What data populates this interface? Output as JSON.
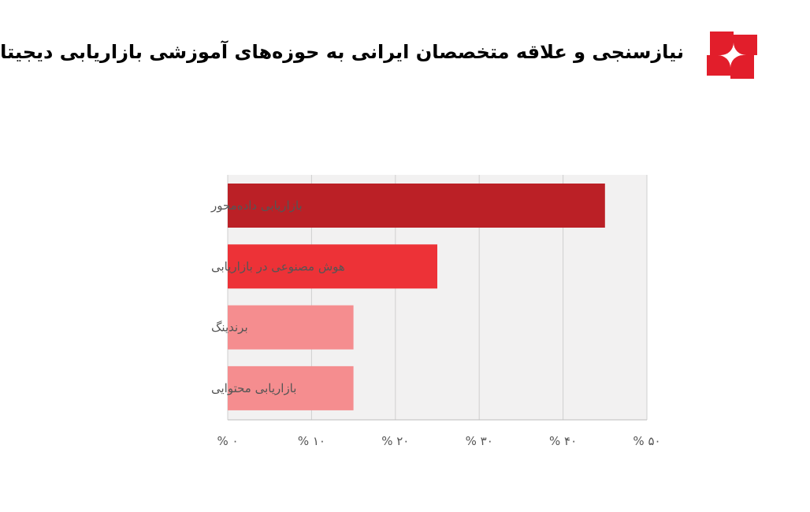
{
  "page": {
    "title": "نیازسنجی و علاقه متخصصان ایرانی به حوزه‌های آموزشی بازاریابی دیجیتال",
    "logo_icon": "pinwheel-logo-icon",
    "brand_color": "#e21e2b"
  },
  "chart_data": {
    "type": "bar",
    "orientation": "horizontal",
    "title": "نیازسنجی و علاقه متخصصان ایرانی به حوزه‌های آموزشی بازاریابی دیجیتال",
    "xlabel": "",
    "ylabel": "",
    "categories": [
      "بازاریابی داده‌محور",
      "هوش مصنوعی در بازاریابی",
      "برندینگ",
      "بازاریابی محتوایی"
    ],
    "values": [
      45,
      25,
      15,
      15
    ],
    "colors": [
      "#bb2026",
      "#ed3237",
      "#f58d8f",
      "#f58d8f"
    ],
    "xlim": [
      0,
      50
    ],
    "ticks": [
      0,
      10,
      20,
      30,
      40,
      50
    ],
    "tick_labels": [
      "% ۰",
      "% ۱۰",
      "% ۲۰",
      "% ۳۰",
      "% ۴۰",
      "% ۵۰"
    ],
    "grid": true,
    "plot_background": "#f2f1f1"
  }
}
